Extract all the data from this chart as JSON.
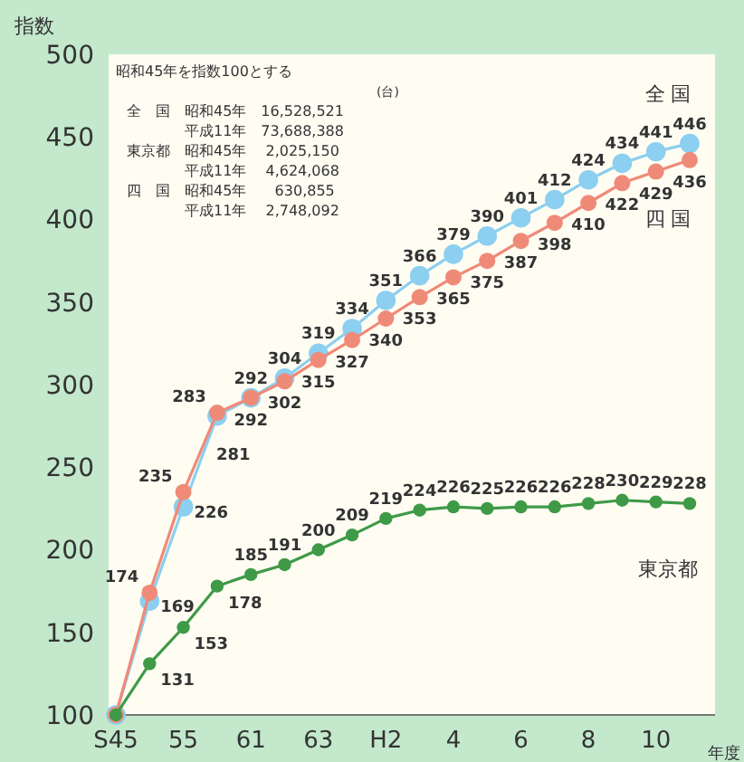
{
  "chart_data": {
    "type": "line",
    "ylabel": "指数",
    "xlabel": "年度",
    "categories": [
      "S45",
      null,
      "55",
      null,
      "61",
      null,
      "63",
      null,
      "H2",
      null,
      "4",
      null,
      "6",
      null,
      "8",
      null,
      "10",
      null
    ],
    "series": [
      {
        "name": "全 国",
        "color": "#8ccff0",
        "values": [
          100,
          169,
          226,
          281,
          292,
          304,
          319,
          334,
          351,
          366,
          379,
          390,
          401,
          412,
          424,
          434,
          441,
          446
        ],
        "value_labels": [
          null,
          "169",
          "226",
          "281",
          "292",
          "304",
          "319",
          "334",
          "351",
          "366",
          "379",
          "390",
          "401",
          "412",
          "424",
          "434",
          "441",
          "446"
        ]
      },
      {
        "name": "四 国",
        "color": "#f08a78",
        "values": [
          100,
          174,
          235,
          283,
          292,
          302,
          315,
          327,
          340,
          353,
          365,
          375,
          387,
          398,
          410,
          422,
          429,
          436
        ],
        "value_labels": [
          null,
          "174",
          "235",
          "283",
          "292",
          "302",
          "315",
          "327",
          "340",
          "353",
          "365",
          "375",
          "387",
          "398",
          "410",
          "422",
          "429",
          "436"
        ]
      },
      {
        "name": "東京都",
        "color": "#3f9a48",
        "values": [
          100,
          131,
          153,
          178,
          185,
          191,
          200,
          209,
          219,
          224,
          226,
          225,
          226,
          226,
          228,
          230,
          229,
          228
        ],
        "value_labels": [
          null,
          "131",
          "153",
          "178",
          "185",
          "191",
          "200",
          "209",
          "219",
          "224",
          "226",
          "225",
          "226",
          "226",
          "228",
          "230",
          "229",
          "228"
        ]
      }
    ],
    "ylim": [
      100,
      500
    ],
    "yticks": [
      100,
      150,
      200,
      250,
      300,
      350,
      400,
      450,
      500
    ],
    "grid": false,
    "marker": "circle",
    "line_style": "solid",
    "annotations": [
      "昭和45年を指数100とする",
      "(台)",
      "全　国　昭和45年　16,528,521",
      "　　　　平成11年　73,688,388",
      "東京都　昭和45年　 2,025,150",
      "　　　　平成11年　 4,624,068",
      "四　国　昭和45年　   630,855",
      "　　　　平成11年　 2,748,092"
    ]
  }
}
